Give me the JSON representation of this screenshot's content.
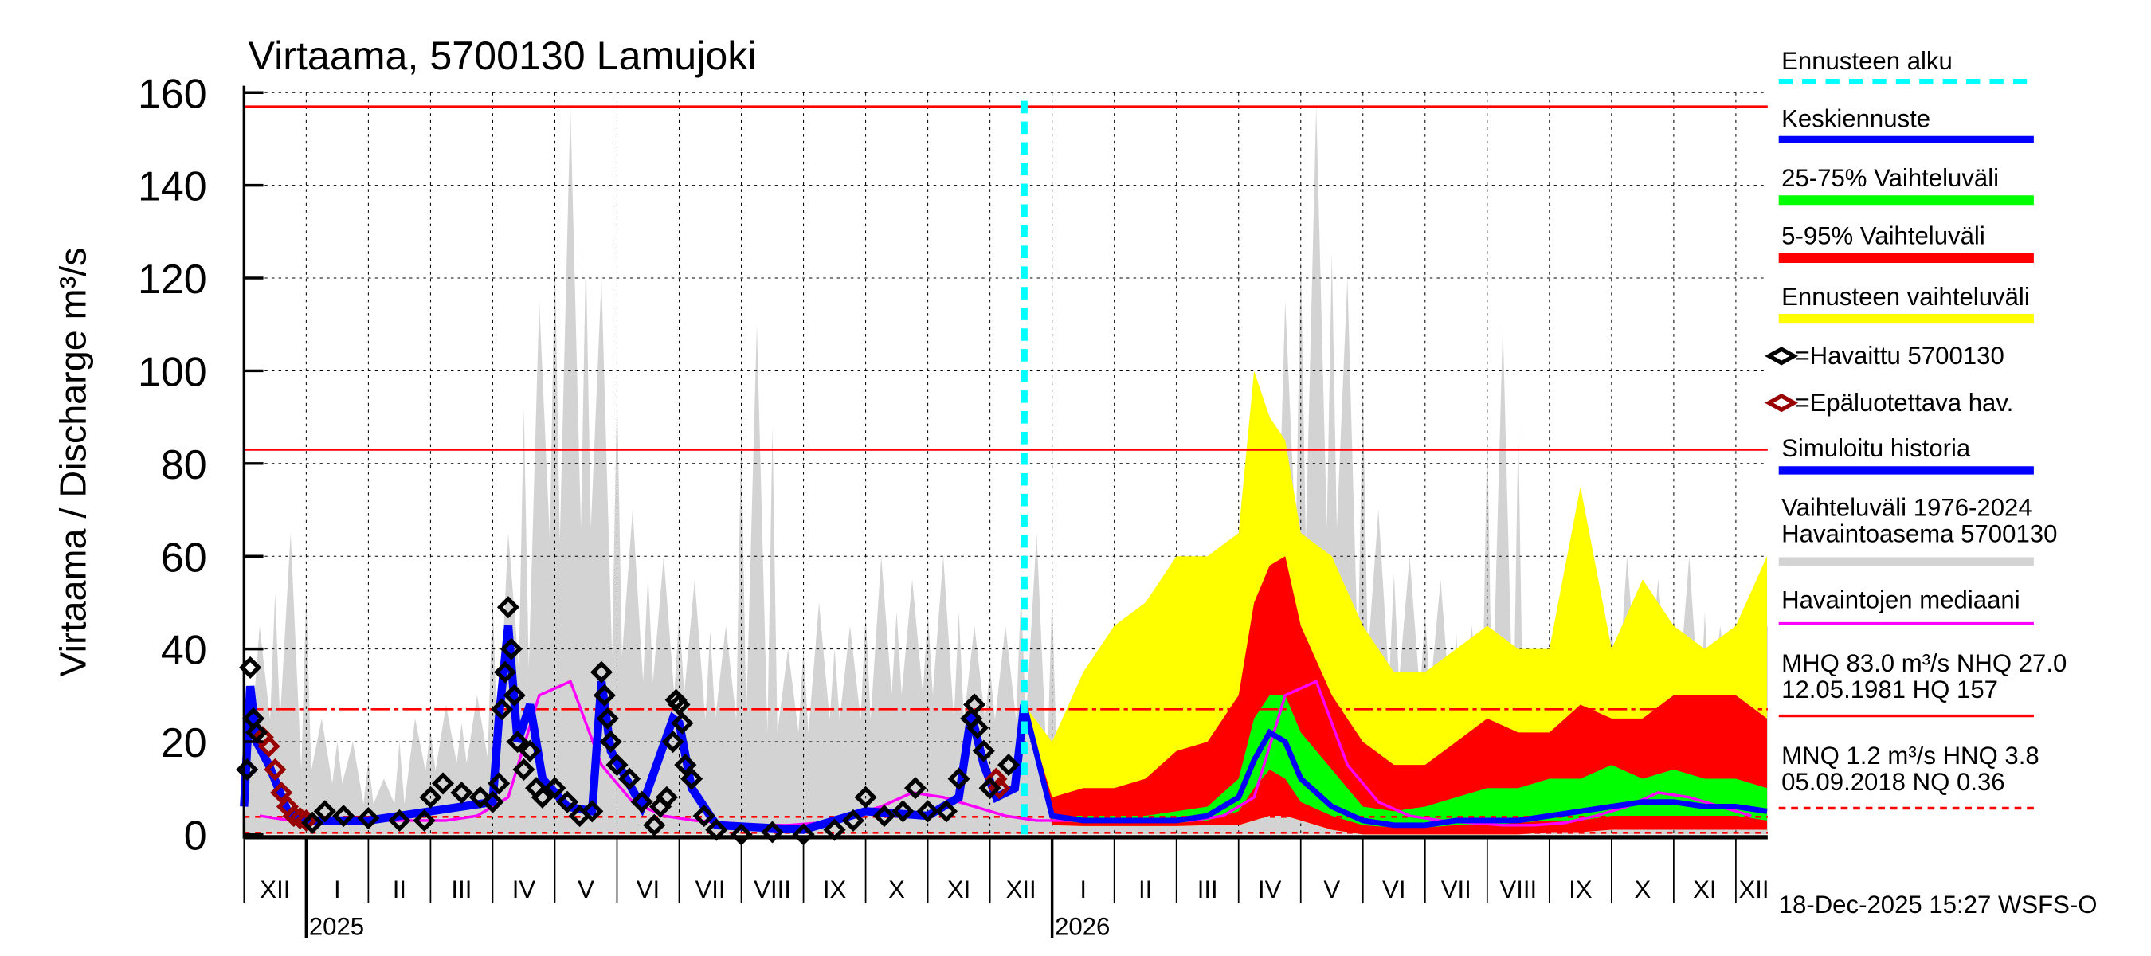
{
  "chart_data": {
    "type": "area",
    "title": "Virtaama, 5700130 Lamujoki",
    "ylabel": "Virtaama / Discharge    m³/s",
    "ylim": [
      0,
      160
    ],
    "yticks": [
      0,
      20,
      40,
      60,
      80,
      100,
      120,
      140,
      160
    ],
    "grid": true,
    "x_unit": "months since 1 Dec 2024",
    "xlim": [
      0,
      24.55
    ],
    "month_labels": [
      "XII",
      "I",
      "II",
      "III",
      "IV",
      "V",
      "VI",
      "VII",
      "VIII",
      "IX",
      "X",
      "XI",
      "XII",
      "I",
      "II",
      "III",
      "IV",
      "V",
      "VI",
      "VII",
      "VIII",
      "IX",
      "X",
      "XI",
      "XII"
    ],
    "year_labels": [
      {
        "t": 1,
        "label": "2025"
      },
      {
        "t": 13,
        "label": "2026"
      }
    ],
    "forecast_start_t": 12.55,
    "reference_lines": [
      {
        "name": "HQ",
        "value": 157,
        "style": "solid"
      },
      {
        "name": "MHQ",
        "value": 83.0,
        "style": "solid"
      },
      {
        "name": "NHQ",
        "value": 27.0,
        "style": "dashdot"
      },
      {
        "name": "HNQ",
        "value": 3.8,
        "style": "dashed"
      },
      {
        "name": "NQ",
        "value": 0.36,
        "style": "dashed"
      }
    ],
    "history_max_halfmonthly_Jan_to_Dec": [
      25,
      20,
      12,
      25,
      28,
      30,
      65,
      115,
      157,
      120,
      70,
      60,
      55,
      45,
      110,
      40,
      50,
      45,
      60,
      55,
      60,
      45,
      45,
      65
    ],
    "history_median_halfmonthly_Jan_to_Dec": [
      3,
      3,
      3,
      3,
      3,
      4,
      8,
      30,
      33,
      15,
      7,
      4,
      3,
      2.5,
      2,
      2,
      2.5,
      4,
      6,
      9,
      8,
      6,
      4,
      3
    ],
    "observed": [
      [
        0.05,
        14
      ],
      [
        0.1,
        36
      ],
      [
        0.15,
        25
      ],
      [
        0.2,
        22
      ],
      [
        1.1,
        2.5
      ],
      [
        1.3,
        5
      ],
      [
        1.6,
        4
      ],
      [
        2.0,
        3.5
      ],
      [
        2.5,
        3
      ],
      [
        2.9,
        3
      ],
      [
        3.0,
        8
      ],
      [
        3.2,
        11
      ],
      [
        3.5,
        9
      ],
      [
        3.8,
        8
      ],
      [
        4.0,
        7
      ],
      [
        4.1,
        11
      ],
      [
        4.15,
        27
      ],
      [
        4.2,
        35
      ],
      [
        4.25,
        49
      ],
      [
        4.3,
        40
      ],
      [
        4.35,
        30
      ],
      [
        4.4,
        20
      ],
      [
        4.5,
        14
      ],
      [
        4.6,
        18
      ],
      [
        4.7,
        10
      ],
      [
        4.8,
        8
      ],
      [
        5.0,
        10
      ],
      [
        5.2,
        7
      ],
      [
        5.4,
        4
      ],
      [
        5.6,
        5
      ],
      [
        5.75,
        35
      ],
      [
        5.8,
        30
      ],
      [
        5.85,
        25
      ],
      [
        5.9,
        20
      ],
      [
        6.0,
        15
      ],
      [
        6.2,
        12
      ],
      [
        6.4,
        7
      ],
      [
        6.6,
        2
      ],
      [
        6.7,
        6
      ],
      [
        6.8,
        8
      ],
      [
        6.9,
        20
      ],
      [
        6.95,
        29
      ],
      [
        7.0,
        28
      ],
      [
        7.05,
        24
      ],
      [
        7.1,
        15
      ],
      [
        7.2,
        12
      ],
      [
        7.4,
        4
      ],
      [
        7.6,
        1
      ],
      [
        8.0,
        0
      ],
      [
        8.5,
        0.5
      ],
      [
        9.0,
        0
      ],
      [
        9.5,
        1
      ],
      [
        9.8,
        3
      ],
      [
        10.0,
        8
      ],
      [
        10.3,
        4
      ],
      [
        10.6,
        5
      ],
      [
        10.8,
        10
      ],
      [
        11.0,
        5
      ],
      [
        11.3,
        5
      ],
      [
        11.5,
        12
      ],
      [
        11.7,
        25
      ],
      [
        11.75,
        28
      ],
      [
        11.8,
        23
      ],
      [
        11.9,
        18
      ],
      [
        12.0,
        10
      ],
      [
        12.3,
        15
      ]
    ],
    "unreliable": [
      [
        0.3,
        21
      ],
      [
        0.4,
        19
      ],
      [
        0.5,
        14
      ],
      [
        0.6,
        9
      ],
      [
        0.7,
        6
      ],
      [
        0.8,
        4
      ],
      [
        0.9,
        3.5
      ],
      [
        1.0,
        3
      ],
      [
        12.1,
        12
      ],
      [
        12.15,
        10
      ]
    ],
    "simulated": [
      [
        0,
        6
      ],
      [
        0.1,
        32
      ],
      [
        0.2,
        20
      ],
      [
        0.4,
        15
      ],
      [
        0.7,
        5
      ],
      [
        1.0,
        3
      ],
      [
        2.0,
        3
      ],
      [
        3.0,
        5
      ],
      [
        4.0,
        7
      ],
      [
        4.1,
        25
      ],
      [
        4.25,
        45
      ],
      [
        4.4,
        20
      ],
      [
        4.6,
        28
      ],
      [
        4.8,
        12
      ],
      [
        5.2,
        6
      ],
      [
        5.6,
        5
      ],
      [
        5.75,
        33
      ],
      [
        5.9,
        18
      ],
      [
        6.4,
        6
      ],
      [
        6.9,
        25
      ],
      [
        7.0,
        24
      ],
      [
        7.2,
        10
      ],
      [
        7.6,
        2
      ],
      [
        9.0,
        1
      ],
      [
        10.0,
        5
      ],
      [
        11.0,
        4
      ],
      [
        11.5,
        8
      ],
      [
        11.7,
        26
      ],
      [
        11.9,
        15
      ],
      [
        12.1,
        8
      ],
      [
        12.4,
        10
      ],
      [
        12.55,
        28
      ]
    ],
    "forecast": {
      "t": [
        12.55,
        13,
        13.5,
        14,
        14.5,
        15,
        15.5,
        16,
        16.25,
        16.5,
        16.75,
        17,
        17.5,
        18,
        18.5,
        19,
        19.5,
        20,
        20.5,
        21,
        21.5,
        22,
        22.5,
        23,
        23.5,
        24,
        24.5
      ],
      "max": [
        28,
        20,
        35,
        45,
        50,
        60,
        60,
        65,
        100,
        90,
        85,
        65,
        60,
        45,
        35,
        35,
        40,
        45,
        40,
        40,
        75,
        40,
        55,
        45,
        40,
        45,
        60
      ],
      "p95": [
        28,
        8,
        10,
        10,
        12,
        18,
        20,
        30,
        50,
        58,
        60,
        45,
        30,
        20,
        15,
        15,
        20,
        25,
        22,
        22,
        28,
        25,
        25,
        30,
        30,
        30,
        25
      ],
      "p75": [
        28,
        4,
        4,
        4,
        4,
        5,
        6,
        12,
        25,
        30,
        30,
        22,
        14,
        6,
        5,
        6,
        8,
        10,
        10,
        12,
        12,
        15,
        12,
        14,
        12,
        12,
        10
      ],
      "p25": [
        28,
        3,
        2.5,
        2.5,
        2.5,
        2.5,
        3,
        5,
        10,
        14,
        12,
        7,
        4,
        2,
        1.5,
        1.5,
        2,
        2,
        2.5,
        3,
        3,
        4,
        4,
        4,
        4,
        4,
        3
      ],
      "p5": [
        28,
        2,
        1.8,
        1.8,
        1.8,
        1.8,
        2,
        2,
        3,
        4,
        4,
        3,
        1,
        0,
        0,
        0,
        0,
        0,
        0,
        0.5,
        0.5,
        1,
        1,
        1,
        1,
        1,
        1
      ],
      "median": [
        28,
        4,
        3,
        3,
        3,
        3,
        4,
        8,
        16,
        22,
        20,
        12,
        6,
        3,
        2,
        2,
        3,
        3,
        3,
        4,
        5,
        6,
        7,
        7,
        6,
        6,
        5
      ]
    },
    "colors": {
      "forecast_start": "#00ffff",
      "median_forecast": "#0000ff",
      "p25_75": "#00ff00",
      "p5_95": "#ff0000",
      "forecast_range": "#ffff00",
      "observed": "#000000",
      "unreliable": "#990000",
      "simulated": "#0000ff",
      "history": "#d3d3d3",
      "history_median": "#ff00ff",
      "ref": "#ff0000"
    }
  },
  "legend": {
    "forecast_start": "Ennusteen alku",
    "mean_forecast": "Keskiennuste",
    "range_25_75": "25-75% Vaihteluväli",
    "range_5_95": "5-95% Vaihteluväli",
    "forecast_range": "Ennusteen vaihteluväli",
    "observed": "=Havaittu 5700130",
    "unreliable": "=Epäluotettava hav.",
    "simulated": "Simuloitu historia",
    "history_line1": "Vaihteluväli 1976-2024",
    "history_line2": "Havaintoasema 5700130",
    "median": "Havaintojen mediaani",
    "mhq_line1": "MHQ 83.0 m³/s NHQ 27.0",
    "mhq_line2": "12.05.1981 HQ  157",
    "mnq_line1": "MNQ  1.2 m³/s HNQ  3.8",
    "mnq_line2": "05.09.2018 NQ 0.36"
  },
  "footer": {
    "timestamp": "18-Dec-2025 15:27 WSFS-O"
  }
}
